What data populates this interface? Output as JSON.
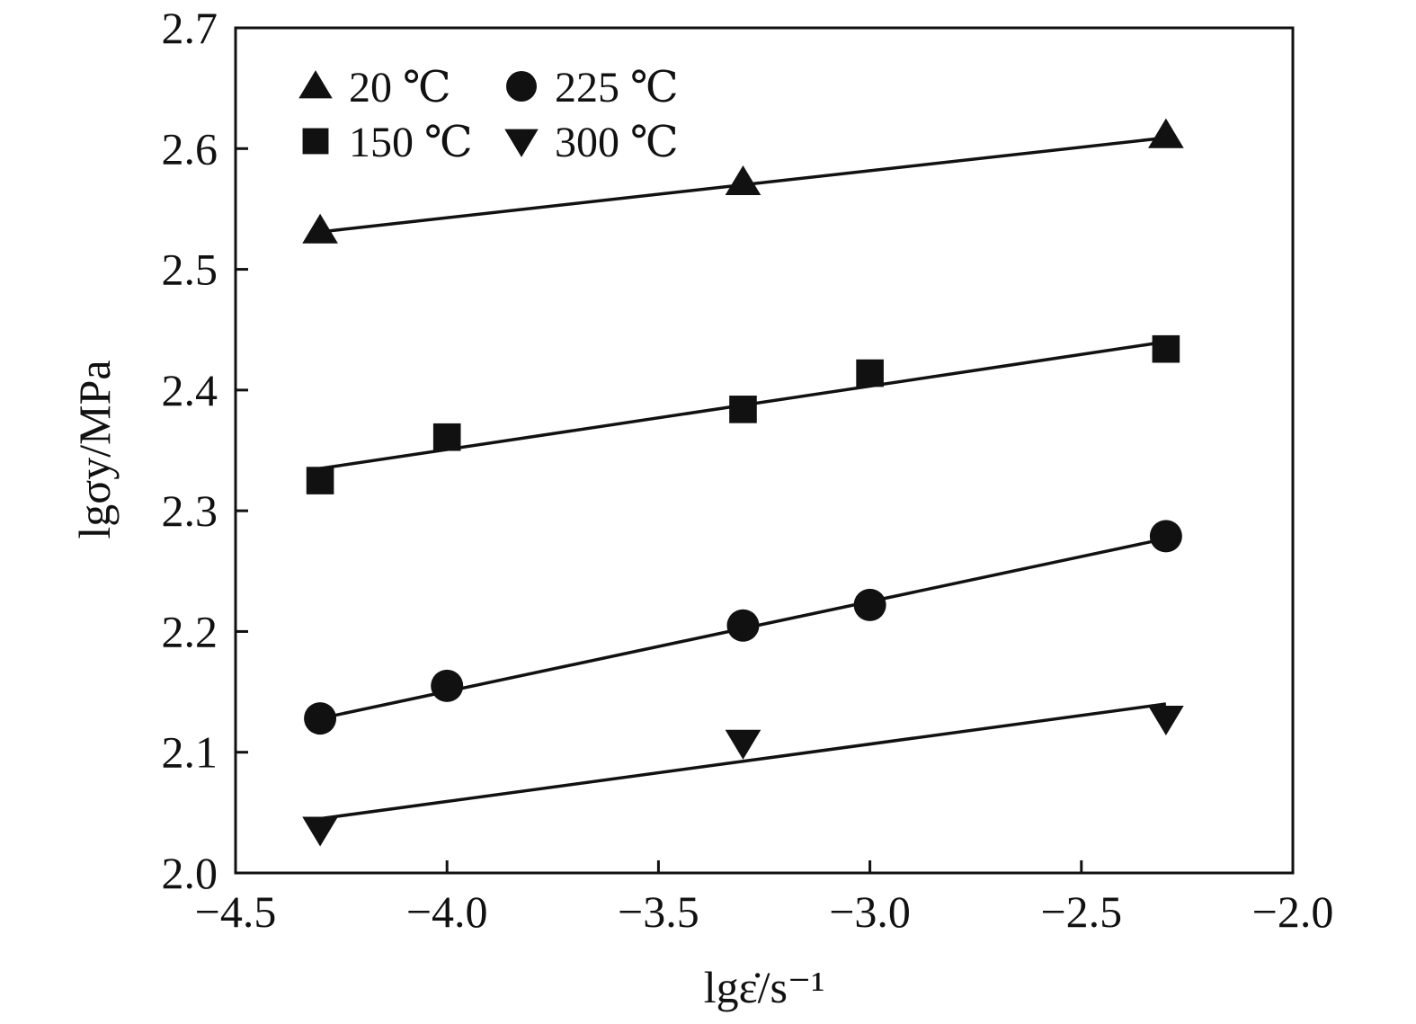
{
  "chart_data": {
    "type": "scatter",
    "xlabel": "lgε̇/s⁻¹",
    "ylabel": "lgσy/MPa",
    "xlim": [
      -4.5,
      -2.0
    ],
    "ylim": [
      2.0,
      2.7
    ],
    "x_ticks": [
      -4.5,
      -4.0,
      -3.5,
      -3.0,
      -2.5,
      -2.0
    ],
    "x_tick_labels": [
      "−4.5",
      "−4.0",
      "−3.5",
      "−3.0",
      "−2.5",
      "−2.0"
    ],
    "y_ticks": [
      2.0,
      2.1,
      2.2,
      2.3,
      2.4,
      2.5,
      2.6,
      2.7
    ],
    "y_tick_labels": [
      "2.0",
      "2.1",
      "2.2",
      "2.3",
      "2.4",
      "2.5",
      "2.6",
      "2.7"
    ],
    "grid": false,
    "legend_position": "top-left",
    "series": [
      {
        "name": "20 ℃",
        "marker": "triangle-up",
        "x": [
          -4.3,
          -3.3,
          -2.3
        ],
        "y": [
          2.532,
          2.572,
          2.611
        ],
        "fit": {
          "x": [
            -4.3,
            -2.3
          ],
          "y": [
            2.531,
            2.609
          ]
        }
      },
      {
        "name": "150 ℃",
        "marker": "square",
        "x": [
          -4.3,
          -4.0,
          -3.3,
          -3.0,
          -2.3
        ],
        "y": [
          2.325,
          2.361,
          2.384,
          2.414,
          2.434
        ],
        "fit": {
          "x": [
            -4.3,
            -2.3
          ],
          "y": [
            2.335,
            2.44
          ]
        }
      },
      {
        "name": "225 ℃",
        "marker": "circle",
        "x": [
          -4.3,
          -4.0,
          -3.3,
          -3.0,
          -2.3
        ],
        "y": [
          2.128,
          2.155,
          2.205,
          2.222,
          2.279
        ],
        "fit": {
          "x": [
            -4.3,
            -2.3
          ],
          "y": [
            2.128,
            2.277
          ]
        }
      },
      {
        "name": "300 ℃",
        "marker": "triangle-down",
        "x": [
          -4.3,
          -3.3,
          -2.3
        ],
        "y": [
          2.036,
          2.108,
          2.128
        ],
        "fit": {
          "x": [
            -4.3,
            -2.3
          ],
          "y": [
            2.045,
            2.14
          ]
        }
      }
    ]
  }
}
